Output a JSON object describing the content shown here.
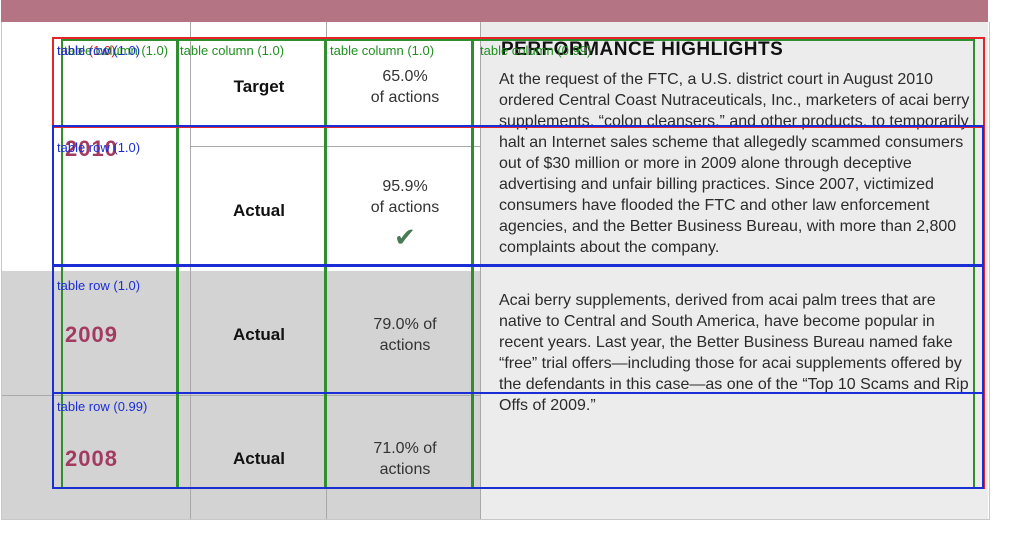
{
  "title": "PERFORMANCE HIGHLIGHTS",
  "rows": [
    {
      "year": "",
      "label": "Target",
      "pct": "65.0%",
      "unit": "of actions"
    },
    {
      "year": "2010",
      "label": "Actual",
      "pct": "95.9%",
      "unit": "of actions",
      "check": "✔"
    },
    {
      "year": "2009",
      "label": "Actual",
      "pct": "79.0% of",
      "unit": "actions"
    },
    {
      "year": "2008",
      "label": "Actual",
      "pct": "71.0% of",
      "unit": "actions"
    }
  ],
  "paragraph1": "At the request of the FTC, a U.S. district court in August 2010 ordered Central Coast Nutraceuticals, Inc., marketers of acai berry supplements, “colon cleansers,” and other products, to temporarily halt an Internet sales scheme that allegedly scammed consumers out of $30 million or more in 2009 alone through deceptive advertising and unfair billing practices. Since 2007, victimized consumers have flooded the FTC and other law enforcement agencies, and the Better Business Bureau, with more than 2,800 complaints about the company.",
  "paragraph2": "Acai berry supplements, derived from acai palm trees that are native to Central and South America, have become popular in recent years. Last year, the Better Business Bureau named fake “free” trial offers—including those for acai supplements offered by the defendants in this case—as one of the “Top 10 Scams and Rip Offs of 2009.”",
  "annotations": {
    "table_label": "table (1.0)",
    "columns": [
      "table column (1.0)",
      "table column (1.0)",
      "table column (1.0)",
      "table column (0.99)"
    ],
    "rows": [
      "table row (1.0)",
      "table row (1.0)",
      "table row (1.0)",
      "table row (0.99)"
    ]
  }
}
